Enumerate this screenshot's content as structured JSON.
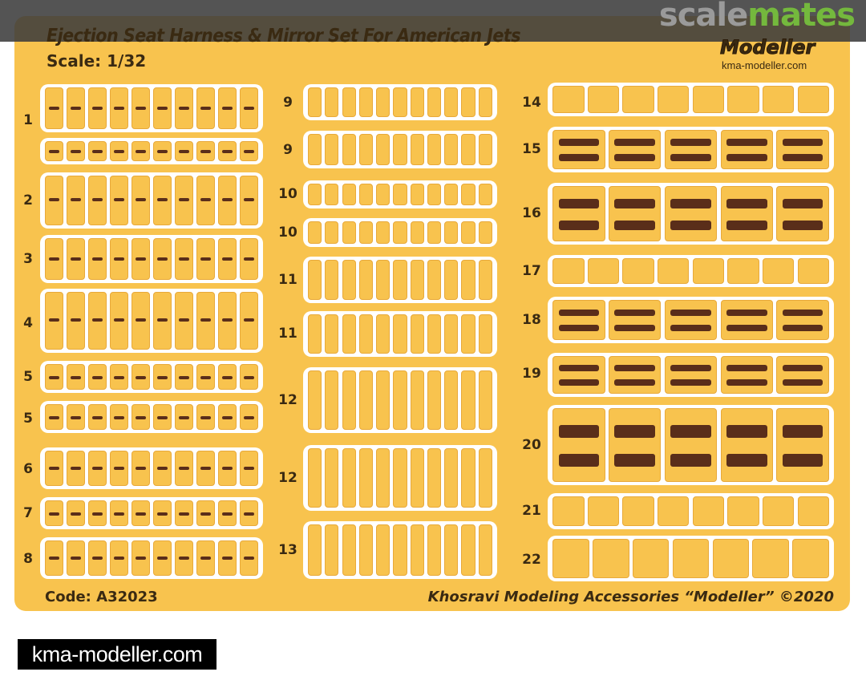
{
  "header": {
    "title": "Ejection Seat Harness & Mirror Set For American Jets",
    "scale": "Scale: 1/32",
    "logo": "Modeller",
    "site": "kma-modeller.com"
  },
  "watermark": {
    "part1": "scale",
    "part2": "mates"
  },
  "fret": {
    "left_labels": [
      "1",
      "2",
      "3",
      "4",
      "5",
      "5",
      "6",
      "7",
      "8"
    ],
    "middle_labels": [
      "9",
      "9",
      "10",
      "10",
      "11",
      "11",
      "12",
      "12",
      "13"
    ],
    "right_labels": [
      "14",
      "15",
      "16",
      "17",
      "18",
      "19",
      "20",
      "21",
      "22"
    ]
  },
  "footer": {
    "code": "Code: A32023",
    "maker": "Khosravi Modeling Accessories “Modeller” ©2020"
  },
  "badge": "kma-modeller.com",
  "colors": {
    "fret": "#f8c34e",
    "text": "#3a2a12",
    "mirror": "#5a2e1a",
    "watermark_green": "#74b83d"
  }
}
